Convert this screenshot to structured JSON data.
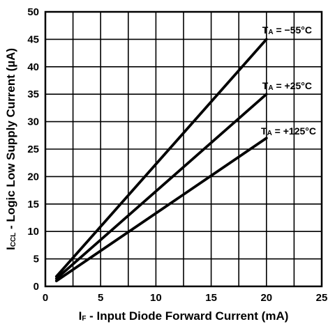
{
  "chart_data": {
    "type": "line",
    "xlabel": {
      "main": "I",
      "sub": "F",
      "rest": " - Input Diode Forward Current (mA)"
    },
    "ylabel": {
      "main": "I",
      "sub": "CCL",
      "rest": " - Logic Low Supply Current (µA)"
    },
    "xlim": [
      0,
      25
    ],
    "ylim": [
      0,
      50
    ],
    "x_ticks": [
      0,
      5,
      10,
      15,
      20,
      25
    ],
    "y_ticks": [
      0,
      5,
      10,
      15,
      20,
      25,
      30,
      35,
      40,
      45,
      50
    ],
    "x_minor_step": 2.5,
    "y_minor_step": 5,
    "grid": true,
    "series": [
      {
        "name": "T",
        "sub": "A",
        "cond": " = −55°C",
        "x": [
          1,
          20
        ],
        "y": [
          1.8,
          45
        ]
      },
      {
        "name": "T",
        "sub": "A",
        "cond": " = +25°C",
        "x": [
          1,
          20
        ],
        "y": [
          1.4,
          35
        ]
      },
      {
        "name": "T",
        "sub": "A",
        "cond": " = +125°C",
        "x": [
          1,
          20
        ],
        "y": [
          1.0,
          27
        ]
      }
    ]
  }
}
